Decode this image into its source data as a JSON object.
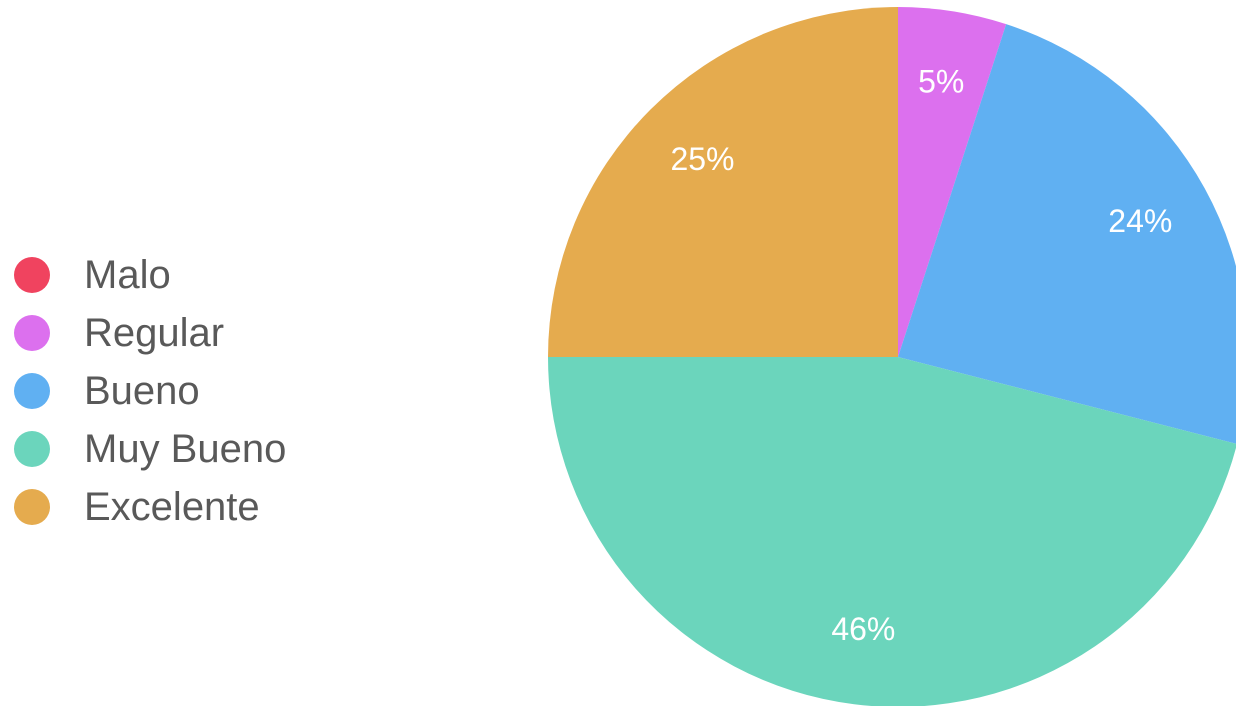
{
  "chart_data": {
    "type": "pie",
    "categories": [
      "Malo",
      "Regular",
      "Bueno",
      "Muy Bueno",
      "Excelente"
    ],
    "values": [
      0,
      5,
      24,
      46,
      25
    ],
    "labels": [
      "",
      "5%",
      "24%",
      "46%",
      "25%"
    ],
    "colors": [
      "#f0435f",
      "#dc70ee",
      "#60b0f2",
      "#6bd5bc",
      "#e5ab4e"
    ],
    "legend_position": "left",
    "start_angle": "top (12 o'clock), clockwise"
  }
}
